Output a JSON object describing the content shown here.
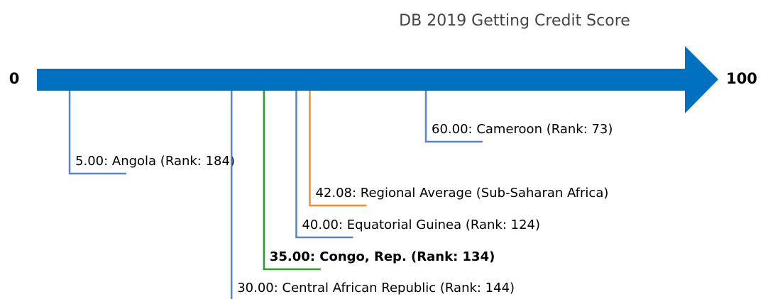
{
  "chart_data": {
    "type": "arrow-scale",
    "title": "DB 2019 Getting Credit Score",
    "xlim": [
      0,
      100
    ],
    "xticks": [
      0,
      100
    ],
    "arrow_color": "#0070c0",
    "values": [
      60,
      5,
      42.08,
      40,
      35,
      30
    ],
    "value_labels": [
      "60.00: Cameroon (Rank: 73)",
      "5.00: Angola (Rank: 184)",
      "42.08: Regional Average (Sub-Saharan Africa)",
      "40.00: Equatorial Guinea (Rank: 124)",
      "35.00: Congo, Rep. (Rank: 134)",
      "30.00: Central African Republic (Rank: 144)"
    ],
    "colors": [
      "#5a85c3",
      "#5a85c3",
      "#f28e2b",
      "#5a85c3",
      "#2ca02c",
      "#5a85c3"
    ],
    "bold": [
      false,
      false,
      false,
      false,
      true,
      false
    ]
  }
}
